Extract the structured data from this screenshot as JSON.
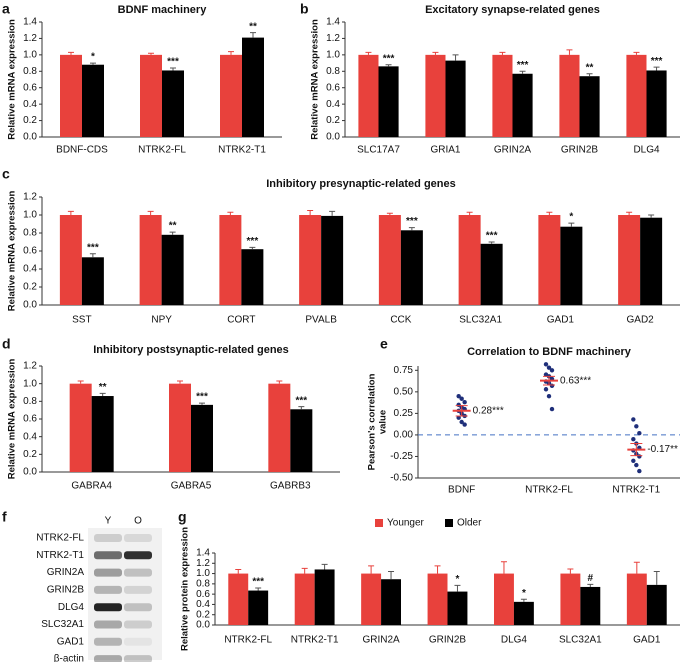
{
  "chart_data": [
    {
      "type": "bar",
      "panel": "a",
      "title": "BDNF machinery",
      "ylabel": "Relative mRNA expression",
      "categories": [
        "BDNF-CDS",
        "NTRK2-FL",
        "NTRK2-T1"
      ],
      "series": [
        {
          "color": "#e8413c",
          "values": [
            1,
            1,
            1
          ],
          "errors": [
            0.03,
            0.02,
            0.04
          ]
        },
        {
          "color": "#000000",
          "values": [
            0.88,
            0.81,
            1.21
          ],
          "errors": [
            0.02,
            0.03,
            0.06
          ],
          "significance": [
            "*",
            "***",
            "**"
          ]
        }
      ],
      "ylim": [
        0,
        1.4
      ],
      "yticks": [
        {
          "value": 0,
          "label": "0.0"
        },
        0.2,
        0.4,
        0.6,
        0.8,
        {
          "value": 1,
          "label": "1.0"
        },
        1.2,
        1.4
      ]
    },
    {
      "type": "bar",
      "panel": "b",
      "title": "Excitatory synapse-related genes",
      "ylabel": "Relative mRNA expression",
      "categories": [
        "SLC17A7",
        "GRIA1",
        "GRIN2A",
        "GRIN2B",
        "DLG4"
      ],
      "series": [
        {
          "color": "#e8413c",
          "values": [
            1,
            1,
            1,
            1,
            1
          ],
          "errors": [
            0.03,
            0.03,
            0.03,
            0.06,
            0.03
          ]
        },
        {
          "color": "#000000",
          "values": [
            0.86,
            0.93,
            0.77,
            0.74,
            0.81
          ],
          "errors": [
            0.02,
            0.07,
            0.03,
            0.03,
            0.04
          ],
          "significance": [
            "***",
            null,
            "***",
            "**",
            "***"
          ]
        }
      ],
      "ylim": [
        0,
        1.4
      ],
      "yticks": [
        {
          "value": 0,
          "label": "0.0"
        },
        0.2,
        0.4,
        0.6,
        0.8,
        {
          "value": 1,
          "label": "1.0"
        },
        1.2,
        1.4
      ]
    },
    {
      "type": "bar",
      "panel": "c",
      "title": "Inhibitory presynaptic-related genes",
      "ylabel": "Relative mRNA expression",
      "categories": [
        "SST",
        "NPY",
        "CORT",
        "PVALB",
        "CCK",
        "SLC32A1",
        "GAD1",
        "GAD2"
      ],
      "series": [
        {
          "color": "#e8413c",
          "values": [
            1,
            1,
            1,
            1,
            1,
            1,
            1,
            1
          ],
          "errors": [
            0.04,
            0.04,
            0.03,
            0.05,
            0.02,
            0.03,
            0.03,
            0.03
          ]
        },
        {
          "color": "#000000",
          "values": [
            0.53,
            0.78,
            0.62,
            0.99,
            0.83,
            0.68,
            0.87,
            0.97
          ],
          "errors": [
            0.04,
            0.03,
            0.02,
            0.05,
            0.03,
            0.02,
            0.04,
            0.03
          ],
          "significance": [
            "***",
            "**",
            "***",
            null,
            "***",
            "***",
            "*",
            null
          ]
        }
      ],
      "ylim": [
        0,
        1.2
      ],
      "yticks": [
        {
          "value": 0,
          "label": "0.0"
        },
        0.2,
        0.4,
        0.6,
        0.8,
        {
          "value": 1,
          "label": "1.0"
        },
        1.2
      ]
    },
    {
      "type": "bar",
      "panel": "d",
      "title": "Inhibitory postsynaptic-related genes",
      "ylabel": "Relative mRNA expression",
      "categories": [
        "GABRA4",
        "GABRA5",
        "GABRB3"
      ],
      "series": [
        {
          "color": "#e8413c",
          "values": [
            1,
            1,
            1
          ],
          "errors": [
            0.03,
            0.03,
            0.03
          ]
        },
        {
          "color": "#000000",
          "values": [
            0.86,
            0.76,
            0.71
          ],
          "errors": [
            0.03,
            0.02,
            0.03
          ],
          "significance": [
            "**",
            "***",
            "***"
          ]
        }
      ],
      "ylim": [
        0,
        1.2
      ],
      "yticks": [
        {
          "value": 0,
          "label": "0.0"
        },
        0.2,
        0.4,
        0.6,
        0.8,
        {
          "value": 1,
          "label": "1.0"
        },
        1.2
      ]
    },
    {
      "type": "scatter",
      "panel": "e",
      "title": "Correlation to BDNF machinery",
      "ylabel": [
        "Pearson's correlation",
        "value"
      ],
      "categories": [
        "BDNF",
        "NTRK2-FL",
        "NTRK2-T1"
      ],
      "points": [
        [
          0.45,
          0.42,
          0.38,
          0.35,
          0.32,
          0.3,
          0.28,
          0.25,
          0.22,
          0.2,
          0.15,
          0.12
        ],
        [
          0.82,
          0.78,
          0.75,
          0.7,
          0.68,
          0.65,
          0.62,
          0.6,
          0.57,
          0.53,
          0.45,
          0.3
        ],
        [
          0.18,
          0.1,
          0.02,
          -0.05,
          -0.1,
          -0.15,
          -0.18,
          -0.22,
          -0.25,
          -0.3,
          -0.35,
          -0.42
        ]
      ],
      "point_color": "#1f2f7a",
      "mean_color": "#e8413c",
      "means": [
        0.28,
        0.63,
        -0.17
      ],
      "mean_errors": [
        0.06,
        0.05,
        0.07
      ],
      "mean_labels": [
        "0.28***",
        "0.63***",
        "-0.17**"
      ],
      "reference_line": 0,
      "reference_color": "#4472c4",
      "ylim": [
        -0.5,
        0.8
      ],
      "yticks": [
        {
          "value": -0.5,
          "label": "-0.50"
        },
        -0.25,
        {
          "value": 0,
          "label": "0.00"
        },
        0.25,
        {
          "value": 0.5,
          "label": "0.50"
        },
        0.75
      ]
    },
    {
      "type": "bar",
      "panel": "g",
      "ylabel": "Relative protein expression",
      "legend": "top",
      "categories": [
        "NTRK2-FL",
        "NTRK2-T1",
        "GRIN2A",
        "GRIN2B",
        "DLG4",
        "SLC32A1",
        "GAD1"
      ],
      "series": [
        {
          "name": "Younger",
          "color": "#e8413c",
          "values": [
            1,
            1,
            1,
            1,
            1,
            1,
            1
          ],
          "errors": [
            0.08,
            0.1,
            0.15,
            0.15,
            0.23,
            0.09,
            0.22
          ]
        },
        {
          "name": "Older",
          "color": "#000000",
          "values": [
            0.67,
            1.08,
            0.89,
            0.65,
            0.45,
            0.74,
            0.78
          ],
          "errors": [
            0.05,
            0.1,
            0.15,
            0.12,
            0.05,
            0.05,
            0.26
          ],
          "significance": [
            "***",
            null,
            null,
            "*",
            "*",
            "#",
            null
          ]
        }
      ],
      "ylim": [
        0,
        1.4
      ],
      "yticks": [
        {
          "value": 0,
          "label": "0.0"
        },
        0.2,
        0.4,
        0.6,
        0.8,
        {
          "value": 1,
          "label": "1.0"
        },
        1.2,
        1.4
      ]
    }
  ],
  "blot": {
    "panel": "f",
    "lanes": [
      "Y",
      "O"
    ],
    "bands": [
      "NTRK2-FL",
      "NTRK2-T1",
      "GRIN2A",
      "GRIN2B",
      "DLG4",
      "SLC32A1",
      "GAD1",
      "β-actin"
    ]
  }
}
